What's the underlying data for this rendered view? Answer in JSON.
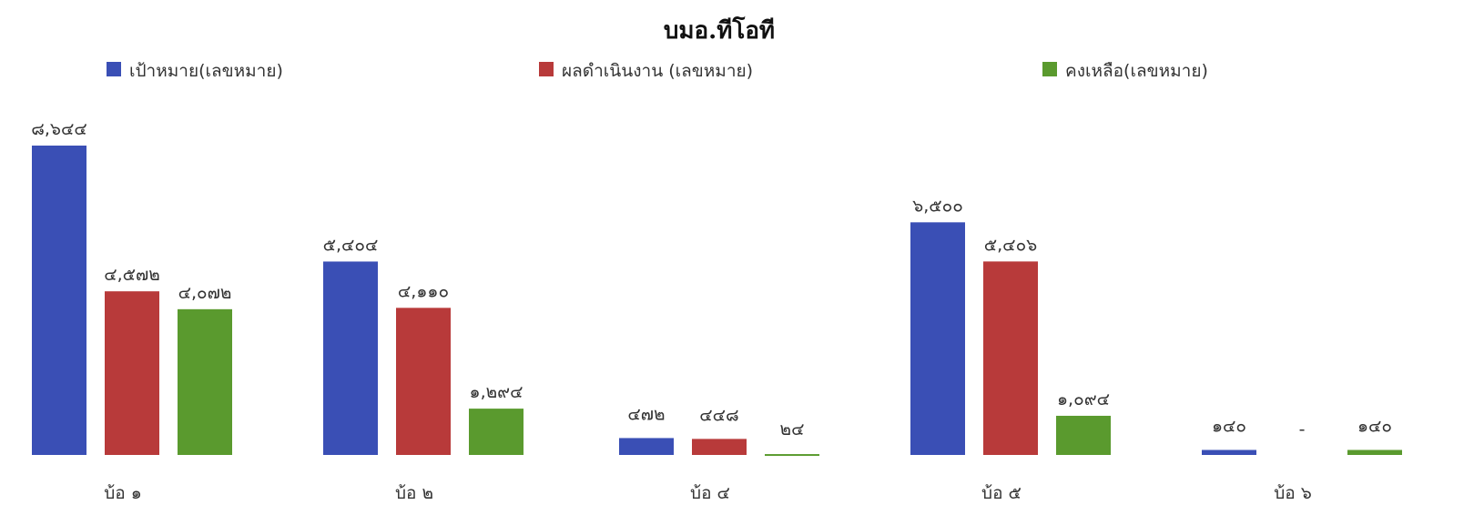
{
  "chart_data": {
    "type": "bar",
    "title": "บมอ.ทีโอที",
    "categories": [
      "บ้อ ๑",
      "บ้อ ๒",
      "บ้อ ๔",
      "บ้อ ๕",
      "บ้อ ๖"
    ],
    "series": [
      {
        "name": "เป้าหมาย(เลขหมาย)",
        "color": "#3a4fb5",
        "values": [
          8644,
          5404,
          472,
          6500,
          140
        ],
        "labels": [
          "๘,๖๔๔",
          "๕,๔๐๔",
          "๔๗๒",
          "๖,๕๐๐",
          "๑๔๐"
        ]
      },
      {
        "name": "ผลดำเนินงาน (เลขหมาย)",
        "color": "#b83a3a",
        "values": [
          4572,
          4110,
          448,
          5406,
          0
        ],
        "labels": [
          "๔,๕๗๒",
          "๔,๑๑๐",
          "๔๔๘",
          "๕,๔๐๖",
          "-"
        ]
      },
      {
        "name": "คงเหลือ(เลขหมาย)",
        "color": "#5a9a2e",
        "values": [
          4072,
          1294,
          24,
          1094,
          140
        ],
        "labels": [
          "๔,๐๗๒",
          "๑,๒๙๔",
          "๒๔",
          "๑,๐๙๔",
          "๑๔๐"
        ]
      }
    ],
    "xlabel": "",
    "ylabel": "",
    "ylim": [
      0,
      8644
    ],
    "grid": false,
    "legend": "top"
  }
}
